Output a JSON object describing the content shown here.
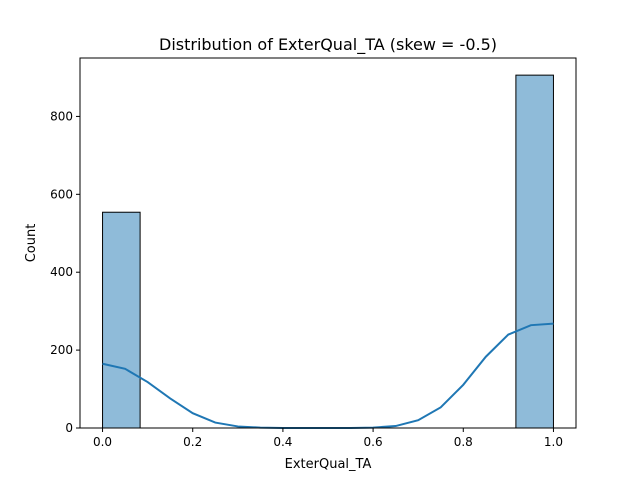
{
  "chart_data": {
    "type": "bar",
    "title": "Distribution of ExterQual_TA (skew = -0.5)",
    "xlabel": "ExterQual_TA",
    "ylabel": "Count",
    "xlim": [
      -0.05,
      1.05
    ],
    "ylim": [
      0,
      950
    ],
    "x_ticks": [
      0.0,
      0.2,
      0.4,
      0.6,
      0.8,
      1.0
    ],
    "x_tick_labels": [
      "0.0",
      "0.2",
      "0.4",
      "0.6",
      "0.8",
      "1.0"
    ],
    "y_ticks": [
      0,
      200,
      400,
      600,
      800
    ],
    "y_tick_labels": [
      "0",
      "200",
      "400",
      "600",
      "800"
    ],
    "bins": [
      {
        "x0": 0.0,
        "x1": 0.0833,
        "count": 554
      },
      {
        "x0": 0.9167,
        "x1": 1.0,
        "count": 906
      }
    ],
    "kde": {
      "x": [
        0.0,
        0.05,
        0.1,
        0.15,
        0.2,
        0.25,
        0.3,
        0.35,
        0.4,
        0.45,
        0.5,
        0.55,
        0.6,
        0.65,
        0.7,
        0.75,
        0.8,
        0.85,
        0.9,
        0.95,
        1.0
      ],
      "y": [
        165,
        152,
        118,
        76,
        38,
        14,
        4,
        1,
        0,
        0,
        0,
        0,
        1,
        5,
        20,
        53,
        111,
        183,
        240,
        264,
        268
      ]
    },
    "grid": false,
    "colors": {
      "bar_fill": "#8fbbd9",
      "bar_edge": "#000000",
      "kde_line": "#1f77b4"
    }
  }
}
